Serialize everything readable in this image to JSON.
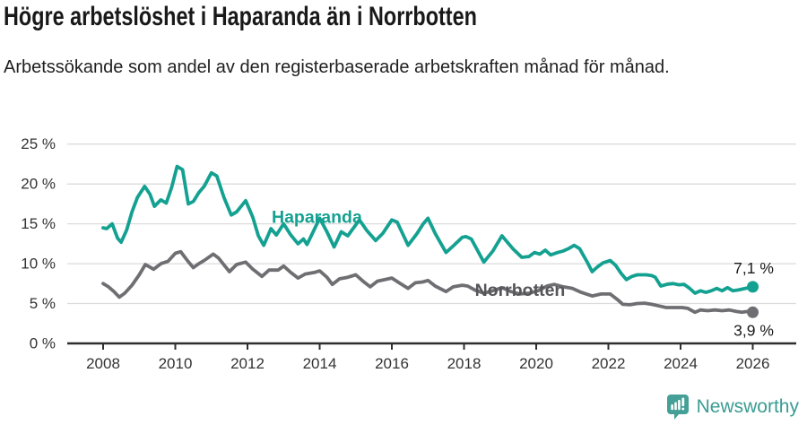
{
  "header": {
    "title": "Högre arbetslöshet i Haparanda än i Norrbotten",
    "subtitle": "Arbetssökande som andel av den registerbaserade arbetskraften månad för månad."
  },
  "footer": {
    "brand": "Newsworthy",
    "brand_color": "#3a9c92"
  },
  "chart_data": {
    "type": "line",
    "title": "Högre arbetslöshet i Haparanda än i Norrbotten",
    "subtitle": "Arbetssökande som andel av den registerbaserade arbetskraften månad för månad.",
    "grid": "horizontal",
    "legend_position": "inline-labels",
    "x_axis": {
      "min": 2007.0,
      "max": 2027.2,
      "ticks": [
        2008,
        2010,
        2012,
        2014,
        2016,
        2018,
        2020,
        2022,
        2024,
        2026
      ],
      "labels": [
        "2008",
        "2010",
        "2012",
        "2014",
        "2016",
        "2018",
        "2020",
        "2022",
        "2024",
        "2026"
      ]
    },
    "y_axis": {
      "min": 0,
      "max": 25,
      "unit": "%",
      "ticks": [
        0,
        5,
        10,
        15,
        20,
        25
      ],
      "labels": [
        "0 %",
        "5 %",
        "10 %",
        "15 %",
        "20 %",
        "25 %"
      ]
    },
    "series": [
      {
        "id": "haparanda",
        "name": "Haparanda",
        "color": "#14a191",
        "label_color": "#14a191",
        "label_at": [
          2012.67,
          15.85
        ],
        "end_label": "7,1 %",
        "end_value": 7.1,
        "end_label_pos": "above",
        "points": [
          [
            2008.0,
            14.5
          ],
          [
            2008.1,
            14.4
          ],
          [
            2008.25,
            15.0
          ],
          [
            2008.4,
            13.2
          ],
          [
            2008.5,
            12.7
          ],
          [
            2008.65,
            14.2
          ],
          [
            2008.8,
            16.5
          ],
          [
            2008.95,
            18.3
          ],
          [
            2009.15,
            19.7
          ],
          [
            2009.3,
            18.7
          ],
          [
            2009.42,
            17.2
          ],
          [
            2009.6,
            18.0
          ],
          [
            2009.75,
            17.6
          ],
          [
            2009.9,
            19.6
          ],
          [
            2010.05,
            22.2
          ],
          [
            2010.2,
            21.8
          ],
          [
            2010.36,
            17.5
          ],
          [
            2010.5,
            17.8
          ],
          [
            2010.65,
            18.9
          ],
          [
            2010.8,
            19.7
          ],
          [
            2011.0,
            21.4
          ],
          [
            2011.15,
            21.0
          ],
          [
            2011.35,
            18.3
          ],
          [
            2011.55,
            16.1
          ],
          [
            2011.7,
            16.5
          ],
          [
            2011.95,
            17.9
          ],
          [
            2012.15,
            15.8
          ],
          [
            2012.3,
            13.5
          ],
          [
            2012.45,
            12.3
          ],
          [
            2012.65,
            14.4
          ],
          [
            2012.8,
            13.6
          ],
          [
            2013.0,
            15.0
          ],
          [
            2013.2,
            13.6
          ],
          [
            2013.4,
            12.5
          ],
          [
            2013.55,
            13.1
          ],
          [
            2013.65,
            12.4
          ],
          [
            2013.8,
            13.8
          ],
          [
            2014.0,
            15.7
          ],
          [
            2014.2,
            14.0
          ],
          [
            2014.4,
            12.1
          ],
          [
            2014.6,
            14.0
          ],
          [
            2014.78,
            13.5
          ],
          [
            2015.1,
            15.5
          ],
          [
            2015.3,
            14.2
          ],
          [
            2015.55,
            12.9
          ],
          [
            2015.75,
            13.8
          ],
          [
            2016.0,
            15.5
          ],
          [
            2016.15,
            15.2
          ],
          [
            2016.45,
            12.3
          ],
          [
            2016.7,
            13.8
          ],
          [
            2016.87,
            15.0
          ],
          [
            2017.0,
            15.7
          ],
          [
            2017.2,
            13.8
          ],
          [
            2017.5,
            11.4
          ],
          [
            2017.72,
            12.3
          ],
          [
            2017.95,
            13.3
          ],
          [
            2018.05,
            13.4
          ],
          [
            2018.2,
            13.1
          ],
          [
            2018.55,
            10.2
          ],
          [
            2018.8,
            11.6
          ],
          [
            2019.05,
            13.5
          ],
          [
            2019.35,
            11.9
          ],
          [
            2019.6,
            10.8
          ],
          [
            2019.8,
            10.9
          ],
          [
            2019.95,
            11.4
          ],
          [
            2020.1,
            11.2
          ],
          [
            2020.25,
            11.7
          ],
          [
            2020.4,
            11.1
          ],
          [
            2020.6,
            11.4
          ],
          [
            2020.75,
            11.6
          ],
          [
            2020.9,
            11.9
          ],
          [
            2021.05,
            12.3
          ],
          [
            2021.2,
            11.9
          ],
          [
            2021.4,
            10.3
          ],
          [
            2021.55,
            9.0
          ],
          [
            2021.7,
            9.6
          ],
          [
            2021.85,
            10.1
          ],
          [
            2022.05,
            10.4
          ],
          [
            2022.2,
            9.8
          ],
          [
            2022.35,
            8.8
          ],
          [
            2022.5,
            8.0
          ],
          [
            2022.65,
            8.4
          ],
          [
            2022.8,
            8.6
          ],
          [
            2023.05,
            8.6
          ],
          [
            2023.2,
            8.5
          ],
          [
            2023.3,
            8.3
          ],
          [
            2023.45,
            7.2
          ],
          [
            2023.65,
            7.45
          ],
          [
            2023.8,
            7.5
          ],
          [
            2023.95,
            7.35
          ],
          [
            2024.1,
            7.4
          ],
          [
            2024.25,
            6.9
          ],
          [
            2024.4,
            6.3
          ],
          [
            2024.55,
            6.6
          ],
          [
            2024.7,
            6.4
          ],
          [
            2024.85,
            6.6
          ],
          [
            2025.0,
            6.9
          ],
          [
            2025.15,
            6.6
          ],
          [
            2025.3,
            7.0
          ],
          [
            2025.45,
            6.6
          ],
          [
            2025.6,
            6.7
          ],
          [
            2025.8,
            6.9
          ],
          [
            2026.0,
            7.1
          ]
        ]
      },
      {
        "id": "norrbotten",
        "name": "Norrbotten",
        "color": "#6f6f73",
        "label_color": "#55555a",
        "label_at": [
          2018.3,
          6.7
        ],
        "end_label": "3,9 %",
        "end_value": 3.9,
        "end_label_pos": "below",
        "points": [
          [
            2008.0,
            7.5
          ],
          [
            2008.15,
            7.1
          ],
          [
            2008.3,
            6.5
          ],
          [
            2008.45,
            5.8
          ],
          [
            2008.6,
            6.3
          ],
          [
            2008.8,
            7.3
          ],
          [
            2009.0,
            8.6
          ],
          [
            2009.17,
            9.9
          ],
          [
            2009.4,
            9.3
          ],
          [
            2009.6,
            10.0
          ],
          [
            2009.8,
            10.3
          ],
          [
            2010.0,
            11.3
          ],
          [
            2010.15,
            11.5
          ],
          [
            2010.35,
            10.3
          ],
          [
            2010.5,
            9.5
          ],
          [
            2010.65,
            10.0
          ],
          [
            2010.8,
            10.4
          ],
          [
            2011.05,
            11.2
          ],
          [
            2011.2,
            10.7
          ],
          [
            2011.5,
            9.0
          ],
          [
            2011.7,
            9.9
          ],
          [
            2011.95,
            10.2
          ],
          [
            2012.15,
            9.3
          ],
          [
            2012.4,
            8.4
          ],
          [
            2012.6,
            9.2
          ],
          [
            2012.85,
            9.2
          ],
          [
            2013.0,
            9.7
          ],
          [
            2013.2,
            8.9
          ],
          [
            2013.4,
            8.2
          ],
          [
            2013.6,
            8.7
          ],
          [
            2013.85,
            8.9
          ],
          [
            2014.0,
            9.1
          ],
          [
            2014.2,
            8.3
          ],
          [
            2014.35,
            7.4
          ],
          [
            2014.55,
            8.1
          ],
          [
            2014.78,
            8.3
          ],
          [
            2015.0,
            8.6
          ],
          [
            2015.2,
            7.8
          ],
          [
            2015.4,
            7.1
          ],
          [
            2015.6,
            7.8
          ],
          [
            2015.8,
            8.0
          ],
          [
            2016.0,
            8.2
          ],
          [
            2016.2,
            7.6
          ],
          [
            2016.45,
            6.9
          ],
          [
            2016.65,
            7.6
          ],
          [
            2016.85,
            7.7
          ],
          [
            2017.0,
            7.9
          ],
          [
            2017.2,
            7.2
          ],
          [
            2017.5,
            6.5
          ],
          [
            2017.7,
            7.1
          ],
          [
            2017.95,
            7.3
          ],
          [
            2018.1,
            7.2
          ],
          [
            2018.3,
            6.7
          ],
          [
            2018.55,
            6.3
          ],
          [
            2018.8,
            6.6
          ],
          [
            2019.05,
            7.0
          ],
          [
            2019.3,
            6.5
          ],
          [
            2019.55,
            6.2
          ],
          [
            2019.8,
            6.3
          ],
          [
            2020.05,
            6.6
          ],
          [
            2020.3,
            7.2
          ],
          [
            2020.5,
            7.4
          ],
          [
            2020.75,
            7.1
          ],
          [
            2021.0,
            6.9
          ],
          [
            2021.25,
            6.4
          ],
          [
            2021.55,
            5.95
          ],
          [
            2021.8,
            6.2
          ],
          [
            2022.05,
            6.2
          ],
          [
            2022.25,
            5.5
          ],
          [
            2022.4,
            4.9
          ],
          [
            2022.6,
            4.85
          ],
          [
            2022.8,
            5.0
          ],
          [
            2023.0,
            5.05
          ],
          [
            2023.2,
            4.9
          ],
          [
            2023.4,
            4.7
          ],
          [
            2023.6,
            4.5
          ],
          [
            2023.85,
            4.5
          ],
          [
            2024.05,
            4.5
          ],
          [
            2024.2,
            4.4
          ],
          [
            2024.4,
            3.9
          ],
          [
            2024.55,
            4.2
          ],
          [
            2024.75,
            4.1
          ],
          [
            2024.95,
            4.2
          ],
          [
            2025.15,
            4.1
          ],
          [
            2025.35,
            4.2
          ],
          [
            2025.55,
            4.0
          ],
          [
            2025.7,
            3.9
          ],
          [
            2025.85,
            4.0
          ],
          [
            2026.0,
            3.9
          ]
        ]
      }
    ],
    "colors": {
      "gridline": "#dcdcdc",
      "axis": "#2e2e2e",
      "tick_text": "#333333",
      "value_label_text": "#1a1a1a"
    }
  }
}
